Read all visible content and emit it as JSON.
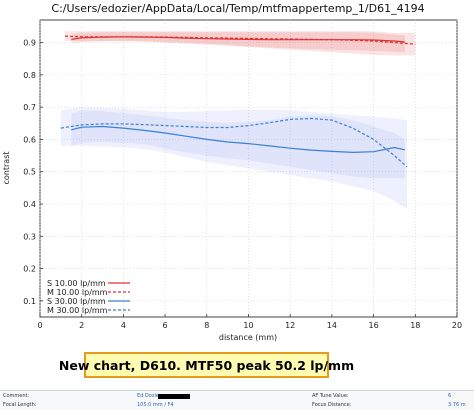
{
  "chart_data": {
    "type": "line",
    "title": "C:/Users/edozier/AppData/Local/Temp/mtfmappertemp_1/D61_4194",
    "xlabel": "distance (mm)",
    "ylabel": "contrast",
    "xlim": [
      0,
      20
    ],
    "ylim": [
      0.05,
      0.97
    ],
    "xticks": [
      0,
      2,
      4,
      6,
      8,
      10,
      12,
      14,
      16,
      18,
      20
    ],
    "yticks": [
      0.1,
      0.2,
      0.3,
      0.4,
      0.5,
      0.6,
      0.7,
      0.8,
      0.9
    ],
    "grid": true,
    "legend_position": "bottom-left",
    "series": [
      {
        "name": "S 10.00 lp/mm",
        "color": "#e03030",
        "style": "solid",
        "x": [
          1.5,
          2,
          3,
          4,
          5,
          6,
          7,
          8,
          9,
          10,
          11,
          12,
          13,
          14,
          15,
          16,
          17,
          17.5
        ],
        "y": [
          0.91,
          0.915,
          0.917,
          0.918,
          0.917,
          0.916,
          0.914,
          0.912,
          0.911,
          0.91,
          0.909,
          0.909,
          0.909,
          0.909,
          0.909,
          0.908,
          0.905,
          0.902
        ],
        "band": {
          "color": "#e03030",
          "upper": [
            0.925,
            0.93,
            0.932,
            0.932,
            0.932,
            0.932,
            0.932,
            0.932,
            0.932,
            0.932,
            0.932,
            0.932,
            0.932,
            0.932,
            0.932,
            0.93,
            0.925,
            0.922
          ],
          "lower": [
            0.9,
            0.902,
            0.904,
            0.905,
            0.904,
            0.902,
            0.9,
            0.897,
            0.893,
            0.888,
            0.885,
            0.882,
            0.88,
            0.878,
            0.876,
            0.874,
            0.872,
            0.87
          ]
        }
      },
      {
        "name": "M 10.00 lp/mm",
        "color": "#e03030",
        "style": "dashed",
        "x": [
          1.2,
          2,
          3,
          4,
          5,
          6,
          7,
          8,
          9,
          10,
          11,
          12,
          13,
          14,
          15,
          16,
          17,
          18
        ],
        "y": [
          0.92,
          0.918,
          0.918,
          0.918,
          0.918,
          0.917,
          0.916,
          0.915,
          0.914,
          0.913,
          0.912,
          0.911,
          0.91,
          0.909,
          0.907,
          0.905,
          0.9,
          0.895
        ],
        "band": {
          "color": "#e03030",
          "upper": [
            0.935,
            0.935,
            0.935,
            0.935,
            0.935,
            0.935,
            0.935,
            0.935,
            0.935,
            0.935,
            0.935,
            0.935,
            0.935,
            0.935,
            0.935,
            0.935,
            0.93,
            0.93
          ],
          "lower": [
            0.905,
            0.905,
            0.905,
            0.905,
            0.903,
            0.9,
            0.897,
            0.893,
            0.89,
            0.886,
            0.882,
            0.878,
            0.874,
            0.87,
            0.866,
            0.862,
            0.86,
            0.86
          ]
        }
      },
      {
        "name": "S 30.00 lp/mm",
        "color": "#3a7fd5",
        "style": "solid",
        "x": [
          1.5,
          2,
          3,
          4,
          5,
          6,
          7,
          8,
          9,
          10,
          11,
          12,
          13,
          14,
          15,
          16,
          17,
          17.5
        ],
        "y": [
          0.63,
          0.638,
          0.64,
          0.635,
          0.628,
          0.62,
          0.61,
          0.6,
          0.592,
          0.587,
          0.58,
          0.573,
          0.567,
          0.563,
          0.56,
          0.562,
          0.575,
          0.568
        ],
        "band": {
          "color": "#7b8ff0",
          "upper": [
            0.68,
            0.69,
            0.688,
            0.682,
            0.675,
            0.668,
            0.66,
            0.655,
            0.652,
            0.654,
            0.66,
            0.67,
            0.675,
            0.672,
            0.66,
            0.64,
            0.62,
            0.6
          ],
          "lower": [
            0.58,
            0.59,
            0.592,
            0.59,
            0.585,
            0.572,
            0.56,
            0.55,
            0.542,
            0.535,
            0.525,
            0.515,
            0.505,
            0.495,
            0.485,
            0.48,
            0.48,
            0.48
          ]
        }
      },
      {
        "name": "M 30.00 lp/mm",
        "color": "#3a7fd5",
        "style": "dashed",
        "x": [
          1.0,
          2,
          3,
          4,
          5,
          6,
          7,
          8,
          9,
          10,
          11,
          12,
          13,
          14,
          15,
          16,
          17,
          17.6
        ],
        "y": [
          0.635,
          0.645,
          0.648,
          0.648,
          0.646,
          0.643,
          0.64,
          0.637,
          0.637,
          0.643,
          0.652,
          0.662,
          0.665,
          0.66,
          0.635,
          0.6,
          0.55,
          0.515
        ],
        "band": {
          "color": "#7b8ff0",
          "upper": [
            0.69,
            0.7,
            0.698,
            0.695,
            0.69,
            0.685,
            0.685,
            0.688,
            0.69,
            0.692,
            0.692,
            0.69,
            0.685,
            0.68,
            0.675,
            0.67,
            0.665,
            0.66
          ],
          "lower": [
            0.58,
            0.58,
            0.578,
            0.575,
            0.57,
            0.56,
            0.545,
            0.53,
            0.52,
            0.51,
            0.5,
            0.49,
            0.48,
            0.47,
            0.455,
            0.44,
            0.41,
            0.385
          ]
        }
      }
    ]
  },
  "caption": "New chart, D610. MTF50 peak 50.2 lp/mm",
  "meta_strip": {
    "comment_label": "Comment:",
    "comment_value": "Ed Dozier",
    "focal_label": "Focal Length:",
    "focal_value": "105.0 mm / F4",
    "af_label": "AF Tune Value:",
    "af_value": "6",
    "focus_label": "Focus Distance:",
    "focus_value": "3.76 m"
  }
}
